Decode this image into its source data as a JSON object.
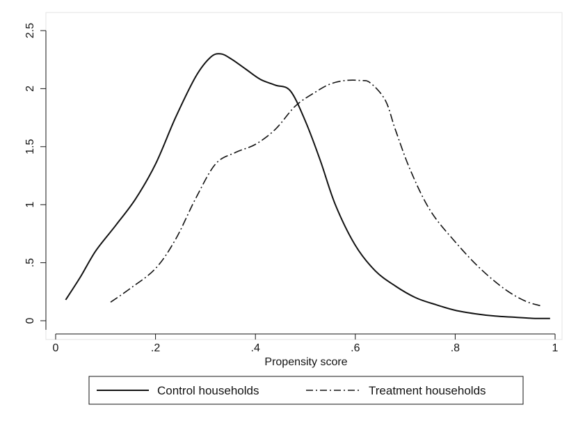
{
  "chart_data": {
    "type": "line",
    "title": "",
    "xlabel": "Propensity score",
    "ylabel": "",
    "xlim": [
      0,
      1
    ],
    "ylim": [
      0,
      2.5
    ],
    "grid": false,
    "legend_position": "bottom",
    "x_ticks": [
      0,
      0.2,
      0.4,
      0.6,
      0.8,
      1
    ],
    "x_tick_labels": [
      "0",
      ".2",
      ".4",
      ".6",
      ".8",
      "1"
    ],
    "y_ticks": [
      0,
      0.5,
      1,
      1.5,
      2,
      2.5
    ],
    "y_tick_labels": [
      "0",
      ".5",
      "1",
      "1.5",
      "2",
      "2.5"
    ],
    "series": [
      {
        "name": "Control households",
        "line_style": "solid",
        "color": "#111111",
        "x": [
          0.02,
          0.05,
          0.08,
          0.12,
          0.16,
          0.2,
          0.24,
          0.28,
          0.31,
          0.33,
          0.35,
          0.38,
          0.41,
          0.44,
          0.47,
          0.5,
          0.53,
          0.56,
          0.6,
          0.64,
          0.68,
          0.72,
          0.76,
          0.8,
          0.84,
          0.88,
          0.92,
          0.96,
          0.99
        ],
        "y": [
          0.18,
          0.38,
          0.6,
          0.82,
          1.05,
          1.35,
          1.75,
          2.1,
          2.27,
          2.3,
          2.26,
          2.17,
          2.08,
          2.03,
          1.98,
          1.72,
          1.38,
          1.0,
          0.65,
          0.43,
          0.3,
          0.2,
          0.14,
          0.09,
          0.06,
          0.04,
          0.03,
          0.02,
          0.02
        ]
      },
      {
        "name": "Treatment households",
        "line_style": "dash-dot",
        "color": "#111111",
        "x": [
          0.11,
          0.15,
          0.2,
          0.24,
          0.28,
          0.32,
          0.36,
          0.4,
          0.44,
          0.48,
          0.52,
          0.55,
          0.58,
          0.61,
          0.63,
          0.66,
          0.68,
          0.71,
          0.75,
          0.8,
          0.85,
          0.9,
          0.94,
          0.97
        ],
        "y": [
          0.16,
          0.28,
          0.45,
          0.7,
          1.05,
          1.35,
          1.45,
          1.52,
          1.65,
          1.85,
          1.97,
          2.04,
          2.07,
          2.07,
          2.05,
          1.9,
          1.65,
          1.3,
          0.95,
          0.68,
          0.45,
          0.27,
          0.17,
          0.13
        ]
      }
    ]
  }
}
